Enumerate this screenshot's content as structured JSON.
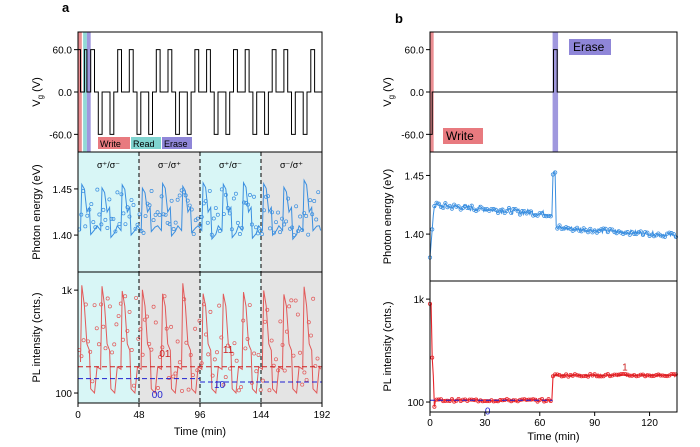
{
  "panel_labels": {
    "a": "a",
    "b": "b"
  },
  "colors": {
    "write": "#e87a7f",
    "read": "#7fd3cf",
    "erase": "#8f86d8",
    "cyan_bg": "#d8f6f6",
    "gray_bg": "#e4e4e4",
    "energy": "#3b8fe0",
    "intensity": "#e25a5a",
    "red_dash": "#cc1f1f",
    "blue_dash": "#1f1fd0",
    "b_intensity": "#e8262c"
  },
  "chart_data": [
    {
      "id": "a-top",
      "type": "line",
      "ylabel": "V_g (V)",
      "ylim": [
        -85,
        85
      ],
      "xlim": [
        0,
        192
      ],
      "yticks": [
        "60.0",
        "0.0",
        "-60.0"
      ],
      "legend": [
        "Write",
        "Read",
        "Erase"
      ],
      "bands": [
        {
          "name": "Write",
          "x": [
            0,
            3
          ]
        },
        {
          "name": "Read",
          "x": [
            4,
            7
          ]
        },
        {
          "name": "Erase",
          "x": [
            7,
            10
          ]
        }
      ],
      "series": [
        {
          "values_description_only": false
        }
      ]
    },
    {
      "id": "a-mid",
      "type": "line",
      "ylabel": "Photon energy (eV)",
      "ylim": [
        1.36,
        1.49
      ],
      "xlim": [
        0,
        192
      ],
      "yticks": [
        "1.45",
        "1.40"
      ],
      "segment_labels": [
        "σ⁺/σ⁻",
        "σ⁻/σ⁺",
        "σ⁺/σ⁻",
        "σ⁻/σ⁺"
      ],
      "segments": [
        [
          0,
          48
        ],
        [
          48,
          96
        ],
        [
          96,
          144
        ],
        [
          144,
          192
        ]
      ]
    },
    {
      "id": "a-bot",
      "type": "line",
      "ylabel": "PL intensity (cnts.)",
      "scale": "log",
      "ylim": [
        80,
        1500
      ],
      "xlim": [
        0,
        192
      ],
      "xlabel": "Time (min)",
      "xticks": [
        "0",
        "48",
        "96",
        "144",
        "192"
      ],
      "yticks": [
        "1k",
        "100"
      ],
      "state_labels": [
        "01",
        "00",
        "11",
        "10"
      ],
      "red_levels": [
        180,
        180,
        180
      ],
      "blue_levels": [
        138,
        128,
        128
      ]
    },
    {
      "id": "b-top",
      "type": "line",
      "ylabel": "V_g (V)",
      "ylim": [
        -85,
        85
      ],
      "xlim": [
        0,
        135
      ],
      "yticks": [
        "60.0",
        "0.0",
        "-60.0"
      ],
      "labels": [
        "Write",
        "Erase"
      ],
      "bands": [
        {
          "name": "Write",
          "x": [
            0,
            2
          ]
        },
        {
          "name": "Erase",
          "x": [
            67,
            70
          ]
        }
      ]
    },
    {
      "id": "b-mid",
      "type": "scatter",
      "ylabel": "Photon energy (eV)",
      "ylim": [
        1.36,
        1.47
      ],
      "xlim": [
        0,
        135
      ],
      "yticks": [
        "1.45",
        "1.40"
      ]
    },
    {
      "id": "b-bot",
      "type": "scatter",
      "ylabel": "PL intensity (cnts.)",
      "scale": "log",
      "ylim": [
        80,
        1500
      ],
      "xlim": [
        0,
        135
      ],
      "xlabel": "Time (min)",
      "xticks": [
        "0",
        "30",
        "60",
        "90",
        "120"
      ],
      "yticks": [
        "1k",
        "100"
      ],
      "state_labels": [
        "0",
        "1"
      ],
      "levels": [
        {
          "x": [
            0,
            67
          ],
          "value": 104
        },
        {
          "x": [
            67,
            135
          ],
          "value": 182
        }
      ]
    }
  ]
}
